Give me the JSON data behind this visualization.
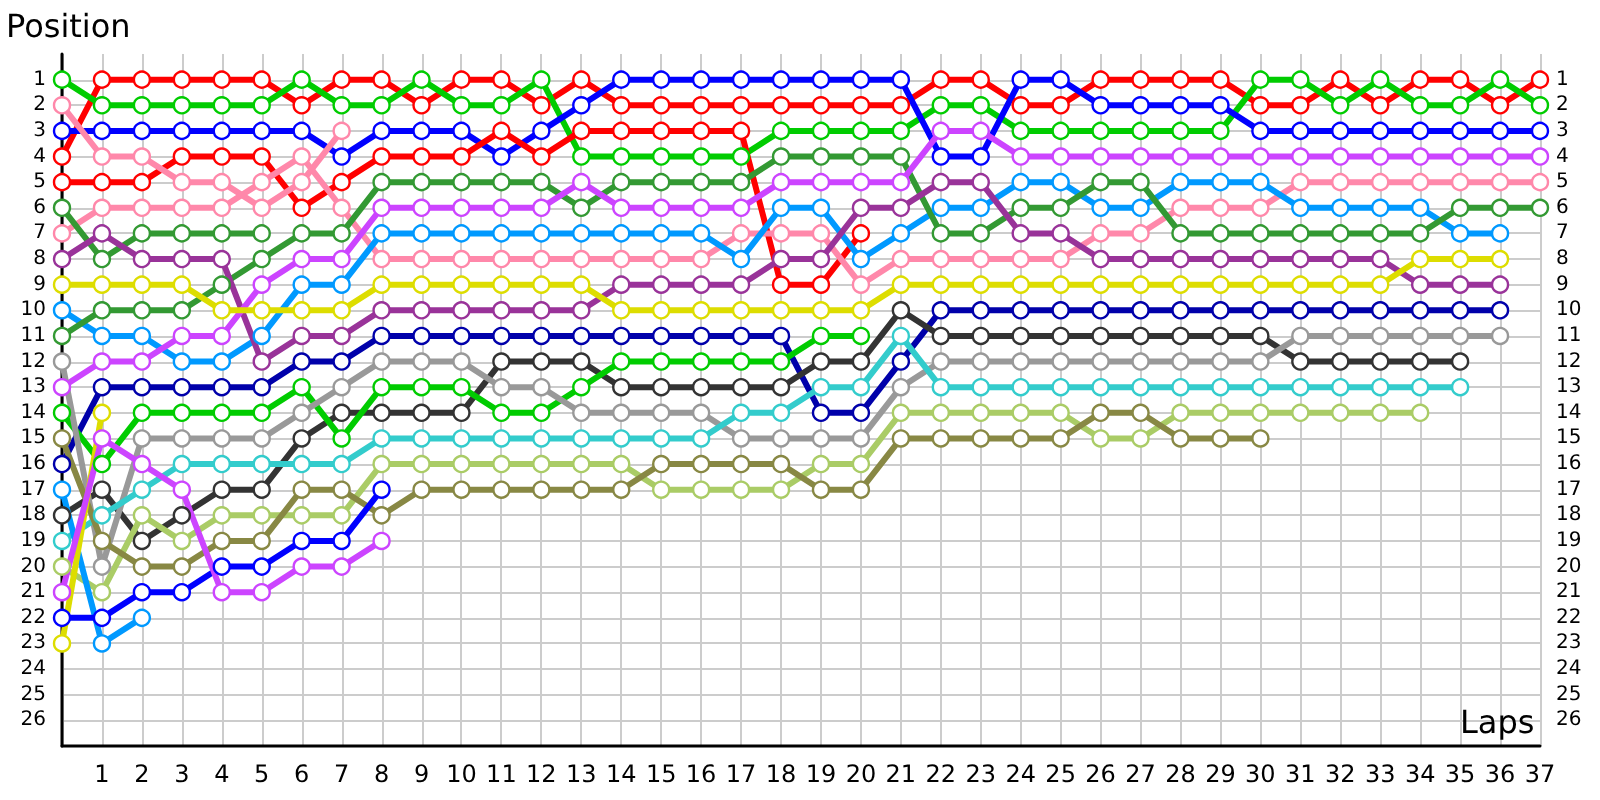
{
  "chart_data": {
    "type": "line",
    "xlabel": "Laps",
    "ylabel": "Position",
    "categories": [
      null,
      "1",
      "2",
      "3",
      "4",
      "5",
      "6",
      "7",
      "8",
      "9",
      "10",
      "11",
      "12",
      "13",
      "14",
      "15",
      "16",
      "17",
      "18",
      "19",
      "20",
      "21",
      "22",
      "23",
      "24",
      "25",
      "26",
      "27",
      "28",
      "29",
      "30",
      "31",
      "32",
      "33",
      "34",
      "35",
      "36",
      "37"
    ],
    "ylim": [
      27,
      0
    ],
    "yticks": [
      1,
      2,
      3,
      4,
      5,
      6,
      7,
      8,
      9,
      10,
      11,
      12,
      13,
      14,
      15,
      16,
      17,
      18,
      19,
      20,
      21,
      22,
      23,
      24,
      25,
      26
    ],
    "y2lim": [
      27,
      0
    ],
    "y2ticks": [
      1,
      2,
      3,
      4,
      5,
      6,
      7,
      8,
      9,
      10,
      11,
      12,
      13,
      14,
      15,
      16,
      17,
      18,
      19,
      20,
      21,
      22,
      23,
      24,
      25,
      26
    ],
    "grid": true,
    "marker": "circle",
    "line_style": "solid",
    "series": [
      {
        "color": "#ff0000",
        "values": [
          4,
          1,
          1,
          1,
          1,
          1,
          2,
          1,
          1,
          2,
          1,
          1,
          2,
          1,
          2,
          2,
          2,
          2,
          2,
          2,
          2,
          2,
          1,
          1,
          2,
          2,
          1,
          1,
          1,
          1,
          2,
          2,
          1,
          2,
          1,
          1,
          2,
          1
        ]
      },
      {
        "color": "#00cc00",
        "values": [
          1,
          2,
          2,
          2,
          2,
          2,
          1,
          2,
          2,
          1,
          2,
          2,
          1,
          4,
          4,
          4,
          4,
          4,
          3,
          3,
          3,
          3,
          2,
          2,
          3,
          3,
          3,
          3,
          3,
          3,
          1,
          1,
          2,
          1,
          2,
          2,
          1,
          2
        ]
      },
      {
        "color": "#0000ff",
        "values": [
          3,
          3,
          3,
          3,
          3,
          3,
          3,
          4,
          3,
          3,
          3,
          4,
          3,
          2,
          1,
          1,
          1,
          1,
          1,
          1,
          1,
          1,
          4,
          4,
          1,
          1,
          2,
          2,
          2,
          2,
          3,
          3,
          3,
          3,
          3,
          3,
          3,
          3
        ]
      },
      {
        "color": "#ff0000",
        "values": [
          5,
          5,
          5,
          4,
          4,
          4,
          6,
          5,
          4,
          4,
          4,
          3,
          4,
          3,
          3,
          3,
          3,
          3,
          9,
          9,
          7,
          null,
          null,
          null,
          null,
          null,
          null,
          null,
          null,
          null,
          null,
          null,
          null,
          null,
          null,
          null,
          null,
          null
        ]
      },
      {
        "color": "#ff88aa",
        "values": [
          2,
          4,
          4,
          5,
          5,
          6,
          5,
          3,
          null,
          null,
          null,
          null,
          null,
          null,
          null,
          null,
          null,
          null,
          null,
          null,
          null,
          null,
          null,
          null,
          null,
          null,
          null,
          null,
          null,
          null,
          null,
          null,
          null,
          null,
          null,
          null,
          null,
          null
        ]
      },
      {
        "color": "#ff88aa",
        "values": [
          7,
          6,
          6,
          6,
          6,
          5,
          4,
          6,
          8,
          8,
          8,
          8,
          8,
          8,
          8,
          8,
          8,
          7,
          7,
          7,
          9,
          8,
          8,
          8,
          8,
          8,
          7,
          7,
          6,
          6,
          6,
          5,
          5,
          5,
          5,
          5,
          5,
          5
        ]
      },
      {
        "color": "#0099ff",
        "values": [
          10,
          11,
          11,
          12,
          12,
          11,
          9,
          9,
          7,
          7,
          7,
          7,
          7,
          7,
          7,
          7,
          7,
          8,
          6,
          6,
          8,
          7,
          6,
          6,
          5,
          5,
          6,
          6,
          5,
          5,
          5,
          6,
          6,
          6,
          6,
          7,
          7,
          null
        ]
      },
      {
        "color": "#339933",
        "values": [
          6,
          8,
          7,
          7,
          7,
          7,
          null,
          null,
          null,
          null,
          null,
          null,
          null,
          null,
          null,
          null,
          null,
          null,
          null,
          null,
          null,
          null,
          null,
          null,
          null,
          null,
          null,
          null,
          null,
          null,
          null,
          null,
          null,
          null,
          null,
          null,
          null,
          null
        ]
      },
      {
        "color": "#339933",
        "values": [
          11,
          10,
          10,
          10,
          9,
          8,
          7,
          7,
          5,
          5,
          5,
          5,
          5,
          6,
          5,
          5,
          5,
          5,
          4,
          4,
          4,
          4,
          7,
          7,
          6,
          6,
          5,
          5,
          7,
          7,
          7,
          7,
          7,
          7,
          7,
          6,
          6,
          6
        ]
      },
      {
        "color": "#993399",
        "values": [
          8,
          7,
          8,
          8,
          8,
          12,
          11,
          11,
          10,
          10,
          10,
          10,
          10,
          10,
          9,
          9,
          9,
          9,
          8,
          8,
          6,
          6,
          5,
          5,
          7,
          7,
          8,
          8,
          8,
          8,
          8,
          8,
          8,
          8,
          9,
          9,
          9,
          null
        ]
      },
      {
        "color": "#cc44ff",
        "values": [
          13,
          12,
          12,
          11,
          11,
          9,
          8,
          8,
          6,
          6,
          6,
          6,
          6,
          5,
          6,
          6,
          6,
          6,
          5,
          5,
          5,
          5,
          3,
          3,
          4,
          4,
          4,
          4,
          4,
          4,
          4,
          4,
          4,
          4,
          4,
          4,
          4,
          4
        ]
      },
      {
        "color": "#dddd00",
        "values": [
          9,
          9,
          9,
          9,
          10,
          10,
          10,
          10,
          9,
          9,
          9,
          9,
          9,
          9,
          10,
          10,
          10,
          10,
          10,
          10,
          10,
          9,
          9,
          9,
          9,
          9,
          9,
          9,
          9,
          9,
          9,
          9,
          9,
          9,
          8,
          8,
          8,
          null
        ]
      },
      {
        "color": "#0000aa",
        "values": [
          16,
          13,
          13,
          13,
          13,
          13,
          12,
          12,
          11,
          11,
          11,
          11,
          11,
          11,
          11,
          11,
          11,
          11,
          11,
          14,
          14,
          12,
          10,
          10,
          10,
          10,
          10,
          10,
          10,
          10,
          10,
          10,
          10,
          10,
          10,
          10,
          10,
          null
        ]
      },
      {
        "color": "#333333",
        "values": [
          18,
          17,
          19,
          18,
          17,
          17,
          15,
          14,
          14,
          14,
          14,
          12,
          12,
          12,
          13,
          13,
          13,
          13,
          13,
          12,
          12,
          10,
          11,
          11,
          11,
          11,
          11,
          11,
          11,
          11,
          11,
          12,
          12,
          12,
          12,
          12,
          null,
          null
        ]
      },
      {
        "color": "#00cc00",
        "values": [
          14,
          16,
          14,
          14,
          14,
          14,
          13,
          15,
          13,
          13,
          13,
          14,
          14,
          13,
          12,
          12,
          12,
          12,
          12,
          11,
          11,
          null,
          null,
          null,
          null,
          null,
          null,
          null,
          null,
          null,
          null,
          null,
          null,
          null,
          null,
          null,
          null,
          null
        ]
      },
      {
        "color": "#999999",
        "values": [
          12,
          20,
          15,
          15,
          15,
          15,
          14,
          13,
          12,
          12,
          12,
          13,
          13,
          14,
          14,
          14,
          14,
          15,
          15,
          15,
          15,
          13,
          12,
          12,
          12,
          12,
          12,
          12,
          12,
          12,
          12,
          11,
          11,
          11,
          11,
          11,
          11,
          null
        ]
      },
      {
        "color": "#33cccc",
        "values": [
          19,
          18,
          17,
          16,
          16,
          16,
          16,
          16,
          15,
          15,
          15,
          15,
          15,
          15,
          15,
          15,
          15,
          14,
          14,
          13,
          13,
          11,
          13,
          13,
          13,
          13,
          13,
          13,
          13,
          13,
          13,
          13,
          13,
          13,
          13,
          13,
          null,
          null
        ]
      },
      {
        "color": "#aacc66",
        "values": [
          20,
          21,
          18,
          19,
          18,
          18,
          18,
          18,
          16,
          16,
          16,
          16,
          16,
          16,
          16,
          17,
          17,
          17,
          17,
          16,
          16,
          14,
          14,
          14,
          14,
          14,
          15,
          15,
          14,
          14,
          14,
          14,
          14,
          14,
          14,
          null,
          null,
          null
        ]
      },
      {
        "color": "#888844",
        "values": [
          15,
          19,
          20,
          20,
          19,
          19,
          17,
          17,
          18,
          17,
          17,
          17,
          17,
          17,
          17,
          16,
          16,
          16,
          16,
          17,
          17,
          15,
          15,
          15,
          15,
          15,
          14,
          14,
          15,
          15,
          15,
          null,
          null,
          null,
          null,
          null,
          null,
          null
        ]
      },
      {
        "color": "#0099ff",
        "values": [
          17,
          23,
          22,
          null,
          null,
          null,
          null,
          null,
          null,
          null,
          null,
          null,
          null,
          null,
          null,
          null,
          null,
          null,
          null,
          null,
          null,
          null,
          null,
          null,
          null,
          null,
          null,
          null,
          null,
          null,
          null,
          null,
          null,
          null,
          null,
          null,
          null,
          null
        ]
      },
      {
        "color": "#0000ff",
        "values": [
          22,
          22,
          21,
          21,
          20,
          20,
          19,
          19,
          17,
          null,
          null,
          null,
          null,
          null,
          null,
          null,
          null,
          null,
          null,
          null,
          null,
          null,
          null,
          null,
          null,
          null,
          null,
          null,
          null,
          null,
          null,
          null,
          null,
          null,
          null,
          null,
          null,
          null
        ]
      },
      {
        "color": "#dddd00",
        "values": [
          23,
          14,
          null,
          null,
          null,
          null,
          null,
          null,
          null,
          null,
          null,
          null,
          null,
          null,
          null,
          null,
          null,
          null,
          null,
          null,
          null,
          null,
          null,
          null,
          null,
          null,
          null,
          null,
          null,
          null,
          null,
          null,
          null,
          null,
          null,
          null,
          null,
          null
        ]
      },
      {
        "color": "#cc44ff",
        "values": [
          21,
          15,
          16,
          17,
          21,
          21,
          20,
          20,
          19,
          null,
          null,
          null,
          null,
          null,
          null,
          null,
          null,
          null,
          null,
          null,
          null,
          null,
          null,
          null,
          null,
          null,
          null,
          null,
          null,
          null,
          null,
          null,
          null,
          null,
          null,
          null,
          null,
          null
        ]
      }
    ]
  }
}
